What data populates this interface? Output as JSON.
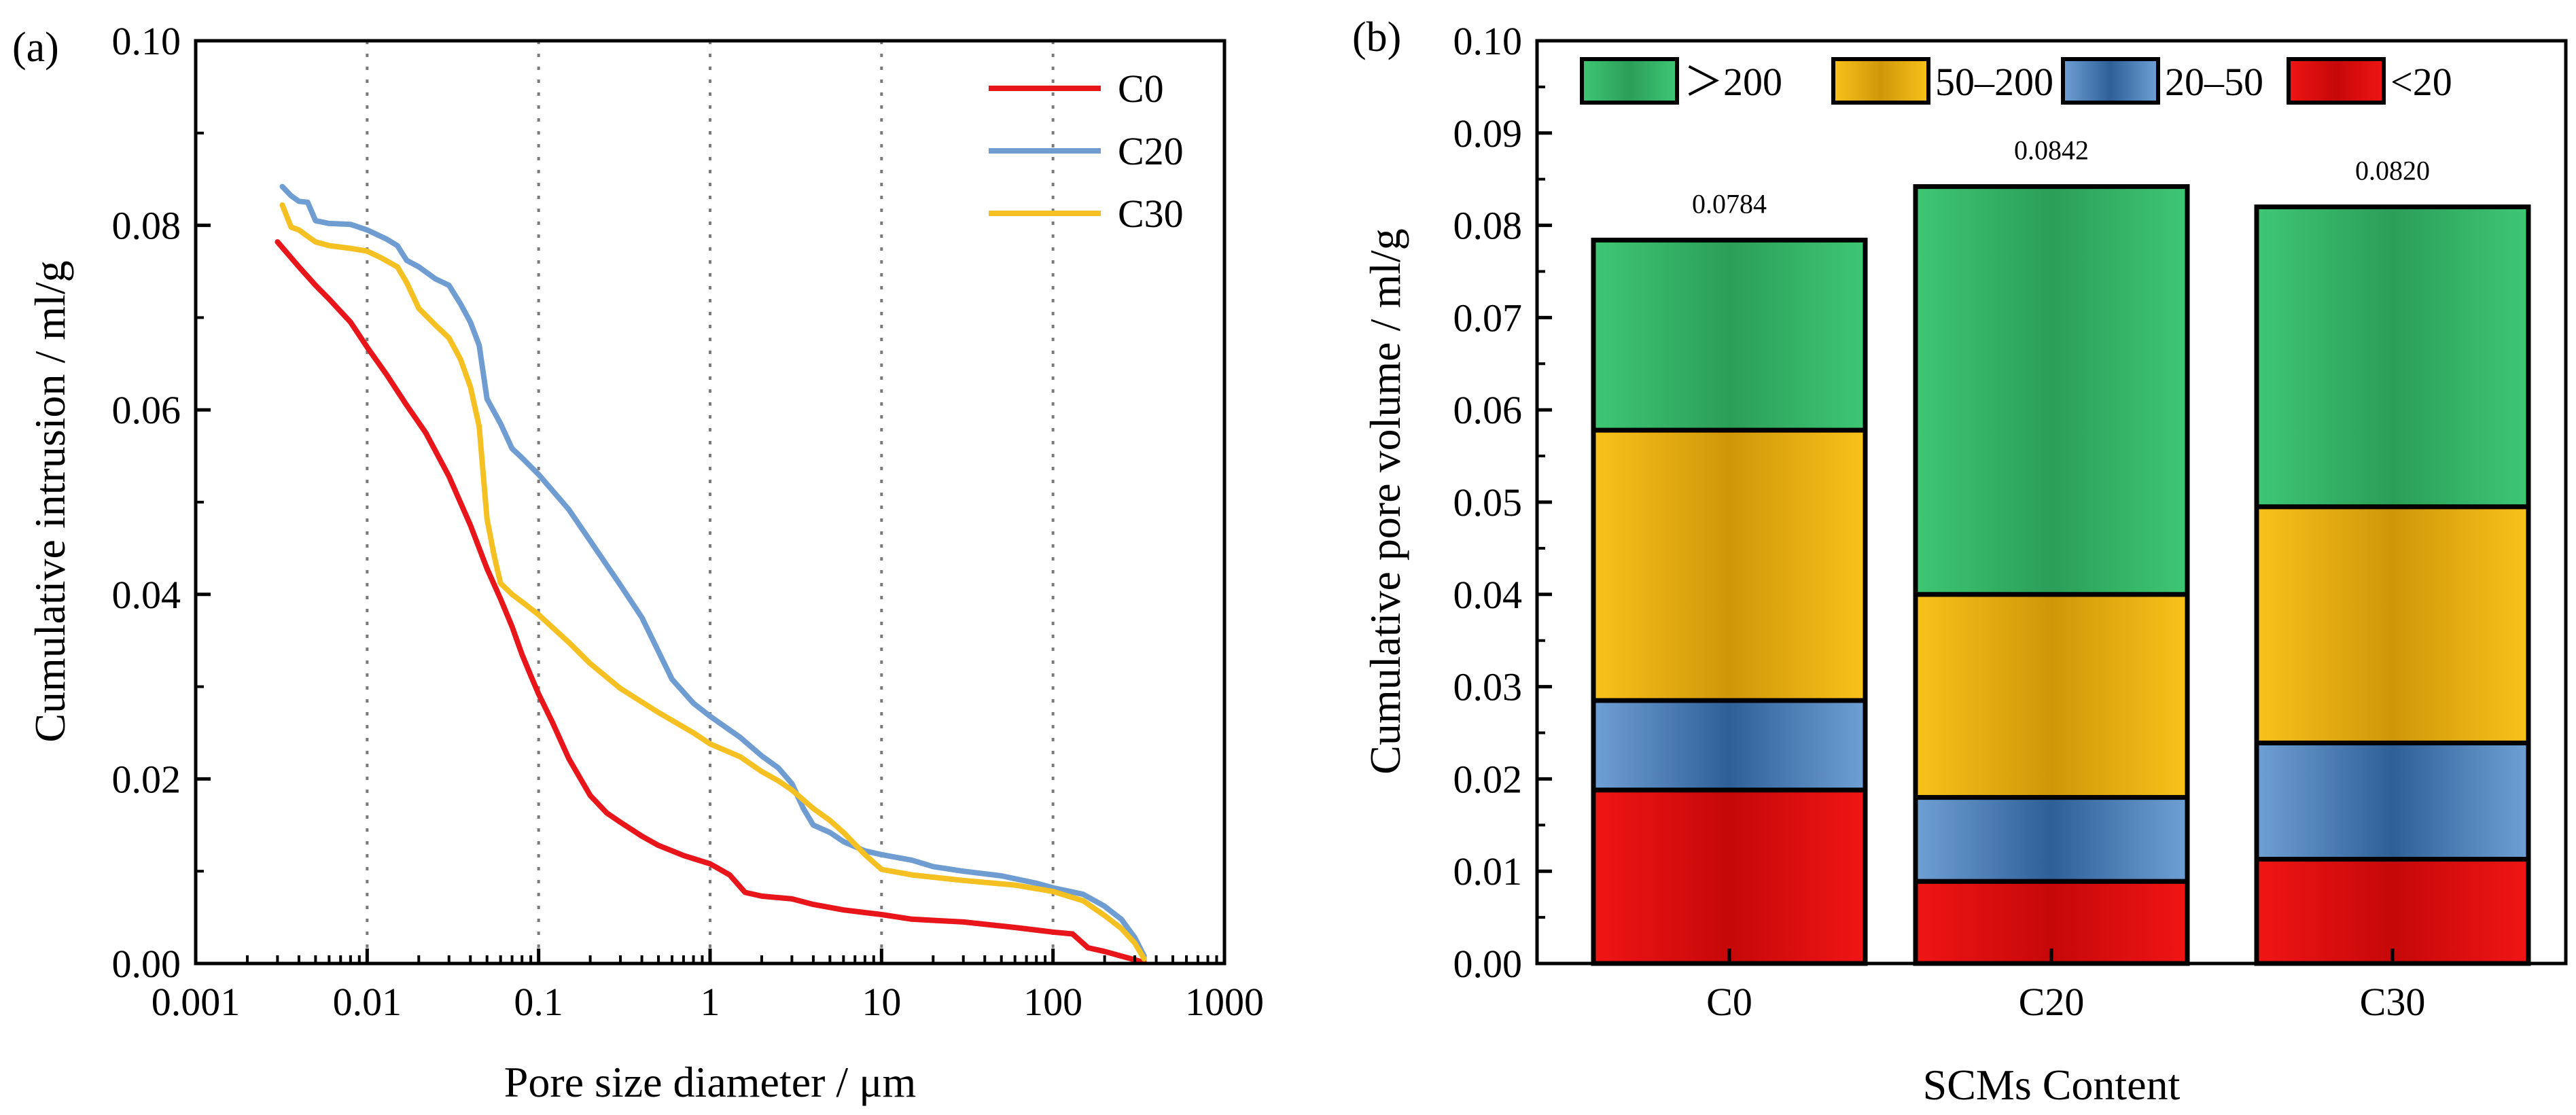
{
  "chart_data": [
    {
      "type": "line",
      "panel_label": "(a)",
      "title": "",
      "xlabel": "Pore size diameter / μm",
      "ylabel": "Cumulative intrusion / ml/g",
      "xscale": "log",
      "xlim": [
        0.001,
        1000
      ],
      "ylim": [
        0,
        0.1
      ],
      "x_tick_labels": [
        "0.001",
        "0.01",
        "0.1",
        "1",
        "10",
        "100",
        "1000"
      ],
      "y_tick_labels": [
        "0.00",
        "0.02",
        "0.04",
        "0.06",
        "0.08",
        "0.10"
      ],
      "grid": "vertical dotted at decades",
      "legend_position": "top-right",
      "series": [
        {
          "name": "C0",
          "color": "#e8161b",
          "x": [
            0.003,
            0.004,
            0.005,
            0.006,
            0.008,
            0.01,
            0.013,
            0.017,
            0.022,
            0.03,
            0.04,
            0.05,
            0.06,
            0.07,
            0.08,
            0.09,
            0.1,
            0.12,
            0.15,
            0.2,
            0.25,
            0.3,
            0.4,
            0.5,
            0.7,
            1,
            1.3,
            1.6,
            2,
            3,
            4,
            6,
            10,
            15,
            30,
            60,
            100,
            130,
            160,
            200,
            250,
            300,
            340
          ],
          "y": [
            0.0782,
            0.0755,
            0.0735,
            0.072,
            0.0695,
            0.0668,
            0.0638,
            0.0605,
            0.0575,
            0.0528,
            0.0475,
            0.0428,
            0.0395,
            0.0365,
            0.0335,
            0.0312,
            0.0292,
            0.0262,
            0.0222,
            0.0182,
            0.0163,
            0.0153,
            0.0138,
            0.0128,
            0.0117,
            0.0108,
            0.0096,
            0.0077,
            0.0073,
            0.007,
            0.0064,
            0.0058,
            0.0053,
            0.0048,
            0.0045,
            0.0039,
            0.0034,
            0.0032,
            0.0017,
            0.0013,
            0.0008,
            0.0004,
            0.0001
          ]
        },
        {
          "name": "C20",
          "color": "#6f9dd1",
          "x": [
            0.0032,
            0.0036,
            0.004,
            0.0045,
            0.005,
            0.006,
            0.008,
            0.01,
            0.013,
            0.015,
            0.017,
            0.02,
            0.025,
            0.03,
            0.035,
            0.04,
            0.045,
            0.05,
            0.06,
            0.07,
            0.08,
            0.1,
            0.15,
            0.2,
            0.3,
            0.4,
            0.6,
            0.8,
            1,
            1.5,
            2,
            2.5,
            3,
            3.5,
            4,
            5,
            6,
            8,
            10,
            15,
            20,
            30,
            50,
            80,
            100,
            150,
            200,
            250,
            300,
            340
          ],
          "y": [
            0.0842,
            0.0832,
            0.0826,
            0.0825,
            0.0805,
            0.0802,
            0.0801,
            0.0795,
            0.0785,
            0.0778,
            0.0762,
            0.0755,
            0.0742,
            0.0735,
            0.0715,
            0.0695,
            0.067,
            0.0612,
            0.0585,
            0.0558,
            0.0548,
            0.053,
            0.0492,
            0.0458,
            0.041,
            0.0375,
            0.0308,
            0.0282,
            0.0268,
            0.0245,
            0.0225,
            0.0212,
            0.0195,
            0.0168,
            0.015,
            0.0142,
            0.0132,
            0.0122,
            0.0118,
            0.0112,
            0.0105,
            0.01,
            0.0095,
            0.0087,
            0.0082,
            0.0075,
            0.0062,
            0.0048,
            0.0028,
            0.0008
          ]
        },
        {
          "name": "C30",
          "color": "#f5c021",
          "x": [
            0.0032,
            0.0036,
            0.004,
            0.0045,
            0.005,
            0.006,
            0.008,
            0.01,
            0.012,
            0.015,
            0.017,
            0.02,
            0.025,
            0.03,
            0.035,
            0.04,
            0.045,
            0.05,
            0.055,
            0.06,
            0.07,
            0.08,
            0.1,
            0.15,
            0.2,
            0.3,
            0.5,
            0.8,
            1,
            1.5,
            2,
            2.5,
            3,
            4,
            5,
            6,
            8,
            10,
            15,
            30,
            60,
            100,
            150,
            200,
            250,
            300,
            340
          ],
          "y": [
            0.0822,
            0.0798,
            0.0795,
            0.0788,
            0.0782,
            0.0778,
            0.0775,
            0.0772,
            0.0765,
            0.0755,
            0.0738,
            0.071,
            0.0692,
            0.0678,
            0.0655,
            0.0625,
            0.0582,
            0.0482,
            0.0442,
            0.0412,
            0.04,
            0.0392,
            0.0378,
            0.0348,
            0.0325,
            0.0298,
            0.0272,
            0.025,
            0.0238,
            0.0224,
            0.0208,
            0.0198,
            0.0188,
            0.0168,
            0.0155,
            0.0142,
            0.0118,
            0.0102,
            0.0096,
            0.009,
            0.0085,
            0.0078,
            0.0068,
            0.0052,
            0.0038,
            0.0022,
            0.0005
          ]
        }
      ]
    },
    {
      "type": "bar",
      "stacked": true,
      "panel_label": "(b)",
      "title": "",
      "xlabel": "SCMs Content",
      "ylabel": "Cumulative pore volume / ml/g",
      "ylim": [
        0,
        0.1
      ],
      "y_tick_labels": [
        "0.00",
        "0.01",
        "0.02",
        "0.03",
        "0.04",
        "0.05",
        "0.06",
        "0.07",
        "0.08",
        "0.09",
        "0.10"
      ],
      "categories": [
        "C0",
        "C20",
        "C30"
      ],
      "totals": [
        0.0784,
        0.0842,
        0.082
      ],
      "total_labels": [
        "0.0784",
        "0.0842",
        "0.0820"
      ],
      "legend_position": "top",
      "series": [
        {
          "name": "<20",
          "label": "<20",
          "color": "#e01010",
          "values": [
            0.0188,
            0.0089,
            0.0113
          ]
        },
        {
          "name": "20–50",
          "label": "20–50",
          "color": "#4f84bd",
          "values": [
            0.0097,
            0.0091,
            0.0126
          ]
        },
        {
          "name": "50–200",
          "label": "50–200",
          "color": "#eaad12",
          "values": [
            0.0293,
            0.022,
            0.0256
          ]
        },
        {
          "name": ">200",
          "label": "＞200",
          "color": "#36b467",
          "values": [
            0.0206,
            0.0442,
            0.0325
          ]
        }
      ]
    }
  ]
}
